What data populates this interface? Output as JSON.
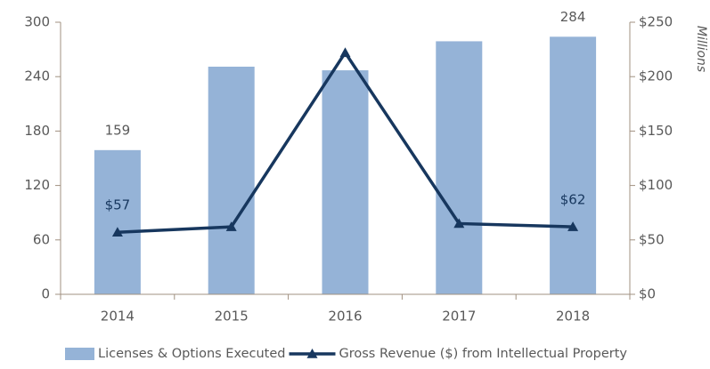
{
  "chart_data": {
    "type": "combo",
    "categories": [
      "2014",
      "2015",
      "2016",
      "2017",
      "2018"
    ],
    "series": [
      {
        "name": "Licenses & Options Executed",
        "type": "bar",
        "color": "#95b3d7",
        "values": [
          159,
          251,
          247,
          279,
          284
        ],
        "value_labels": [
          "159",
          null,
          null,
          null,
          "284"
        ]
      },
      {
        "name": "Gross Revenue ($) from Intellectual Property",
        "type": "line",
        "axis": "y2",
        "color": "#17375e",
        "values": [
          57,
          62,
          222,
          65,
          62
        ],
        "value_labels": [
          "$57",
          null,
          null,
          null,
          "$62"
        ]
      }
    ],
    "ylim": [
      0,
      300
    ],
    "yticks": [
      0,
      60,
      120,
      180,
      240,
      300
    ],
    "y2lim": [
      0,
      250
    ],
    "y2ticks": [
      {
        "value": 0,
        "label": "$0"
      },
      {
        "value": 50,
        "label": "$50"
      },
      {
        "value": 100,
        "label": "$100"
      },
      {
        "value": 150,
        "label": "$150"
      },
      {
        "value": 200,
        "label": "$200"
      },
      {
        "value": 250,
        "label": "$250"
      }
    ],
    "y2label": "Millions",
    "legend": "bottom"
  }
}
